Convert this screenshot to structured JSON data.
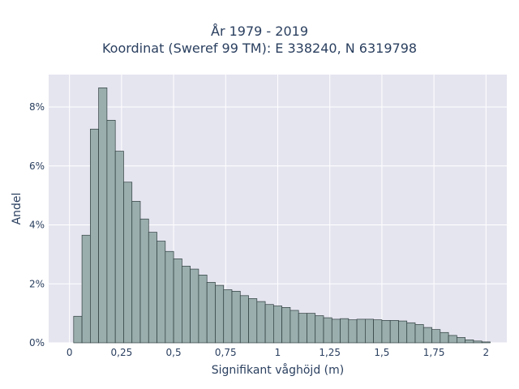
{
  "chart_data": {
    "type": "bar",
    "title_line1": "År 1979 - 2019",
    "title_line2": "Koordinat (Sweref 99 TM): E 338240, N 6319798",
    "xlabel": "Signifikant våghöjd (m)",
    "ylabel": "Andel",
    "xlim": [
      -0.1,
      2.1
    ],
    "ylim": [
      0,
      9.1
    ],
    "x_ticks": [
      {
        "value": 0,
        "label": "0"
      },
      {
        "value": 0.25,
        "label": "0,25"
      },
      {
        "value": 0.5,
        "label": "0,5"
      },
      {
        "value": 0.75,
        "label": "0,75"
      },
      {
        "value": 1,
        "label": "1"
      },
      {
        "value": 1.25,
        "label": "1,25"
      },
      {
        "value": 1.5,
        "label": "1,5"
      },
      {
        "value": 1.75,
        "label": "1,75"
      },
      {
        "value": 2,
        "label": "2"
      }
    ],
    "y_ticks": [
      {
        "value": 0,
        "label": "0%"
      },
      {
        "value": 2,
        "label": "2%"
      },
      {
        "value": 4,
        "label": "4%"
      },
      {
        "value": 6,
        "label": "6%"
      },
      {
        "value": 8,
        "label": "8%"
      }
    ],
    "bin_width": 0.04,
    "bin_starts": [
      0.02,
      0.06,
      0.1,
      0.14,
      0.18,
      0.22,
      0.26,
      0.3,
      0.34,
      0.38,
      0.42,
      0.46,
      0.5,
      0.54,
      0.58,
      0.62,
      0.66,
      0.7,
      0.74,
      0.78,
      0.82,
      0.86,
      0.9,
      0.94,
      0.98,
      1.02,
      1.06,
      1.1,
      1.14,
      1.18,
      1.22,
      1.26,
      1.3,
      1.34,
      1.38,
      1.42,
      1.46,
      1.5,
      1.54,
      1.58,
      1.62,
      1.66,
      1.7,
      1.74,
      1.78,
      1.82,
      1.86,
      1.9,
      1.94,
      1.98
    ],
    "values": [
      0.9,
      3.65,
      7.25,
      8.65,
      7.55,
      6.5,
      5.45,
      4.8,
      4.2,
      3.75,
      3.45,
      3.1,
      2.85,
      2.6,
      2.5,
      2.3,
      2.05,
      1.95,
      1.8,
      1.75,
      1.6,
      1.5,
      1.4,
      1.3,
      1.25,
      1.2,
      1.1,
      1.0,
      1.0,
      0.92,
      0.85,
      0.8,
      0.82,
      0.78,
      0.8,
      0.8,
      0.78,
      0.76,
      0.76,
      0.74,
      0.68,
      0.62,
      0.52,
      0.45,
      0.35,
      0.25,
      0.18,
      0.1,
      0.06,
      0.03
    ],
    "grid": true,
    "colors": {
      "bar_fill": "#9aaeae",
      "bar_stroke": "#2f3e3e",
      "plot_bg": "#e5e5f0",
      "grid": "#ffffff"
    }
  }
}
